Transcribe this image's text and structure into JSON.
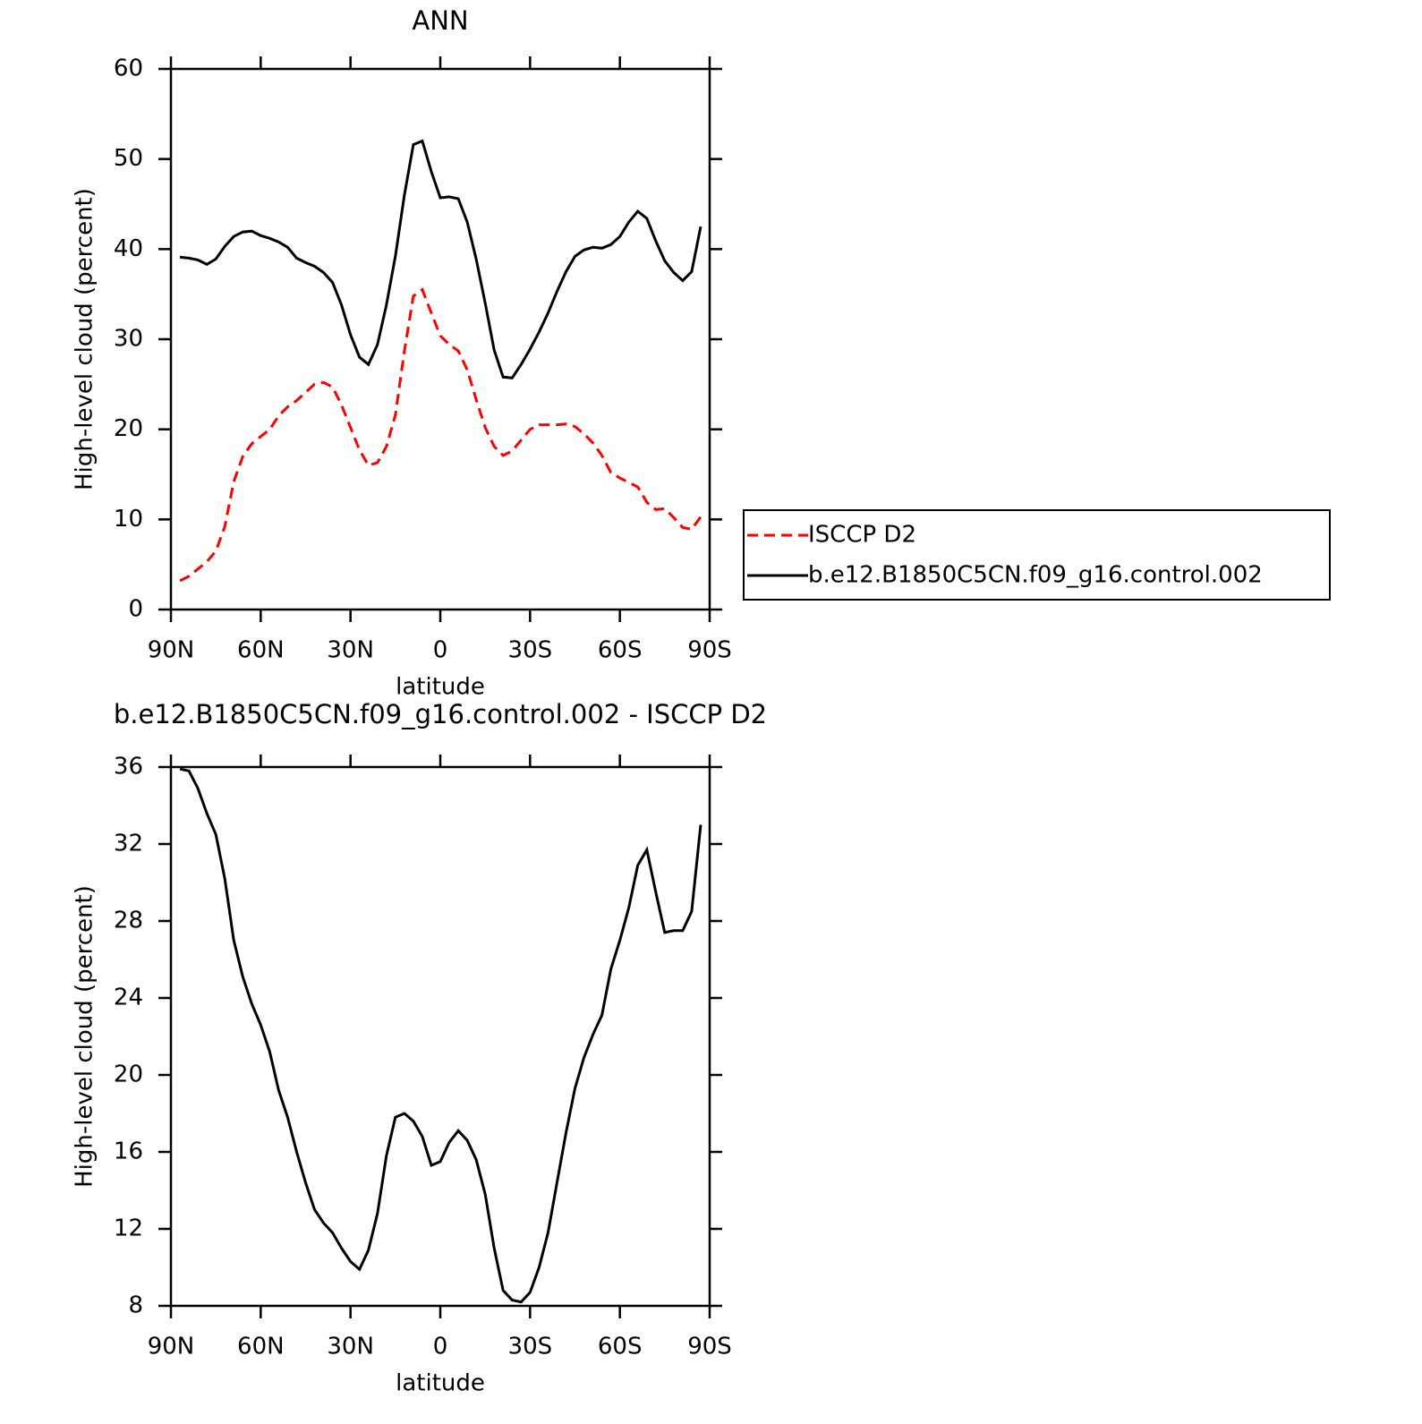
{
  "chart_data": [
    {
      "type": "line",
      "title": "ANN",
      "xlabel": "latitude",
      "ylabel": "High-level cloud (percent)",
      "x": [
        87,
        84,
        81,
        78,
        75,
        72,
        69,
        66,
        63,
        60,
        57,
        54,
        51,
        48,
        45,
        42,
        39,
        36,
        33,
        30,
        27,
        24,
        21,
        18,
        15,
        12,
        9,
        6,
        3,
        0,
        -3,
        -6,
        -9,
        -12,
        -15,
        -18,
        -21,
        -24,
        -27,
        -30,
        -33,
        -36,
        -39,
        -42,
        -45,
        -48,
        -51,
        -54,
        -57,
        -60,
        -63,
        -66,
        -69,
        -72,
        -75,
        -78,
        -81,
        -84,
        -87
      ],
      "xlim": [
        90,
        -90
      ],
      "xticks": [
        {
          "value": 90,
          "label": "90N"
        },
        {
          "value": 60,
          "label": "60N"
        },
        {
          "value": 30,
          "label": "30N"
        },
        0,
        {
          "value": -30,
          "label": "30S"
        },
        {
          "value": -60,
          "label": "60S"
        },
        {
          "value": -90,
          "label": "90S"
        }
      ],
      "ylim": [
        0,
        60
      ],
      "yticks": [
        0,
        10,
        20,
        30,
        40,
        50,
        60
      ],
      "legend": "outside-right",
      "series": [
        {
          "name": "ISCCP D2",
          "color": "#ff0000",
          "dashed": true,
          "values": [
            3.2,
            3.7,
            4.5,
            5.3,
            6.5,
            9.2,
            14.2,
            17.0,
            18.4,
            19.2,
            20.0,
            21.5,
            22.5,
            23.2,
            24.1,
            25.0,
            25.2,
            24.7,
            22.7,
            20.2,
            17.7,
            16.0,
            16.3,
            18.1,
            21.6,
            28.7,
            34.8,
            35.5,
            32.9,
            30.4,
            29.4,
            28.7,
            26.6,
            23.3,
            20.2,
            18.1,
            17.1,
            17.6,
            18.8,
            20.0,
            20.5,
            20.5,
            20.5,
            20.6,
            20.3,
            19.5,
            18.5,
            17.1,
            15.2,
            14.6,
            14.1,
            13.6,
            11.9,
            11.1,
            11.2,
            10.2,
            9.1,
            8.9,
            10.3
          ]
        },
        {
          "name": "b.e12.B1850C5CN.f09_g16.control.002",
          "color": "#000000",
          "dashed": false,
          "values": [
            39.1,
            39.0,
            38.8,
            38.3,
            38.9,
            40.3,
            41.4,
            41.9,
            42.0,
            41.5,
            41.2,
            40.8,
            40.2,
            39.0,
            38.5,
            38.1,
            37.4,
            36.3,
            33.8,
            30.5,
            28.0,
            27.2,
            29.4,
            33.8,
            39.2,
            46.0,
            51.6,
            52.0,
            48.6,
            45.7,
            45.8,
            45.6,
            43.0,
            38.9,
            34.0,
            28.8,
            25.8,
            25.7,
            27.2,
            28.9,
            30.8,
            32.9,
            35.3,
            37.5,
            39.2,
            39.9,
            40.2,
            40.1,
            40.5,
            41.4,
            43.0,
            44.2,
            43.4,
            40.9,
            38.7,
            37.4,
            36.5,
            37.5,
            42.5
          ]
        }
      ]
    },
    {
      "type": "line",
      "title": "b.e12.B1850C5CN.f09_g16.control.002 - ISCCP D2",
      "xlabel": "latitude",
      "ylabel": "High-level cloud (percent)",
      "x": [
        87,
        84,
        81,
        78,
        75,
        72,
        69,
        66,
        63,
        60,
        57,
        54,
        51,
        48,
        45,
        42,
        39,
        36,
        33,
        30,
        27,
        24,
        21,
        18,
        15,
        12,
        9,
        6,
        3,
        0,
        -3,
        -6,
        -9,
        -12,
        -15,
        -18,
        -21,
        -24,
        -27,
        -30,
        -33,
        -36,
        -39,
        -42,
        -45,
        -48,
        -51,
        -54,
        -57,
        -60,
        -63,
        -66,
        -69,
        -72,
        -75,
        -78,
        -81,
        -84,
        -87
      ],
      "xlim": [
        90,
        -90
      ],
      "xticks": [
        {
          "value": 90,
          "label": "90N"
        },
        {
          "value": 60,
          "label": "60N"
        },
        {
          "value": 30,
          "label": "30N"
        },
        0,
        {
          "value": -30,
          "label": "30S"
        },
        {
          "value": -60,
          "label": "60S"
        },
        {
          "value": -90,
          "label": "90S"
        }
      ],
      "ylim": [
        8,
        36
      ],
      "yticks": [
        8,
        12,
        16,
        20,
        24,
        28,
        32,
        36
      ],
      "series": [
        {
          "color": "#000000",
          "dashed": false,
          "values": [
            35.9,
            35.8,
            34.9,
            33.6,
            32.5,
            30.2,
            27.0,
            25.1,
            23.7,
            22.6,
            21.2,
            19.2,
            17.8,
            16.0,
            14.4,
            13.0,
            12.3,
            11.8,
            11.0,
            10.3,
            9.9,
            10.9,
            12.8,
            15.8,
            17.8,
            18.0,
            17.6,
            16.8,
            15.3,
            15.5,
            16.5,
            17.1,
            16.6,
            15.6,
            13.8,
            11.0,
            8.8,
            8.3,
            8.2,
            8.7,
            10.0,
            11.8,
            14.4,
            17.0,
            19.3,
            20.9,
            22.1,
            23.1,
            25.5,
            27.0,
            28.7,
            30.9,
            31.7,
            29.5,
            27.4,
            27.5,
            27.5,
            28.5,
            33.0
          ]
        }
      ]
    }
  ]
}
